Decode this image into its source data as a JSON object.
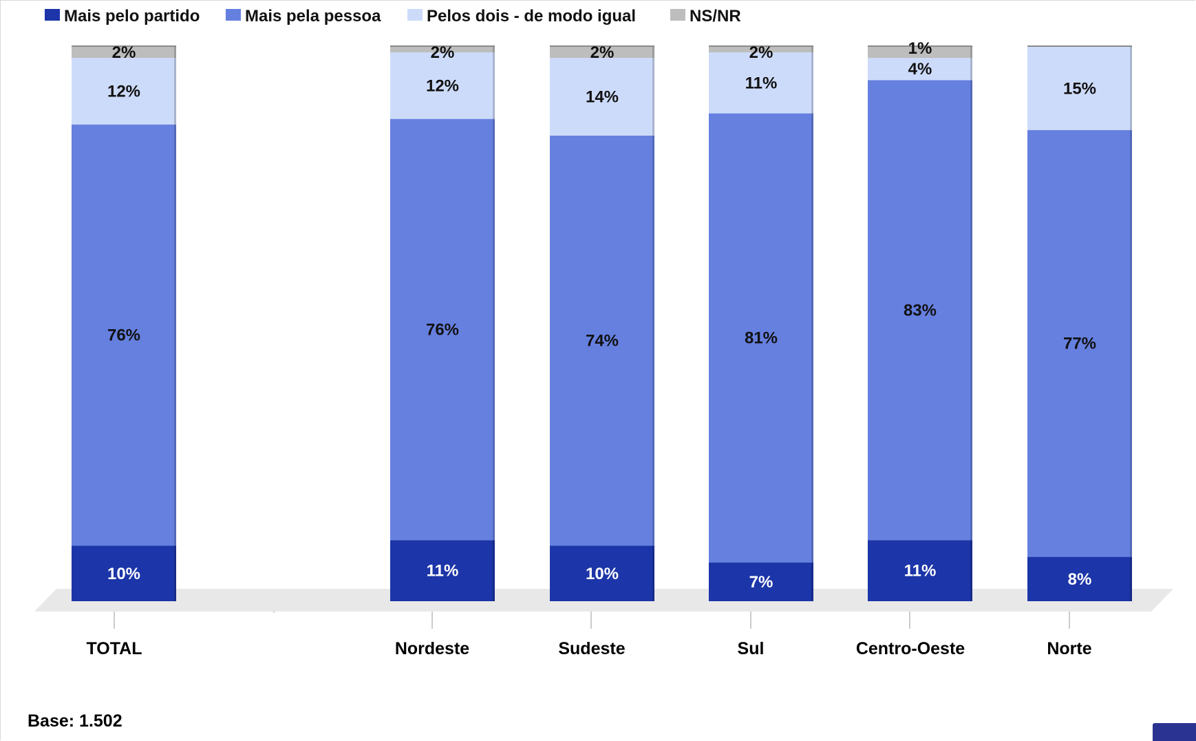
{
  "chart_data": {
    "type": "bar",
    "stacked": true,
    "categories": [
      "TOTAL",
      "Nordeste",
      "Sudeste",
      "Sul",
      "Centro-Oeste",
      "Norte"
    ],
    "series": [
      {
        "name": "Mais pelo partido",
        "color": "#1c35a8",
        "values": [
          10,
          11,
          10,
          7,
          11,
          8
        ],
        "labels": [
          "10%",
          "11%",
          "10%",
          "7%",
          "11%",
          "8%"
        ]
      },
      {
        "name": "Mais pela pessoa",
        "color": "#6680e0",
        "values": [
          76,
          76,
          74,
          81,
          83,
          77
        ],
        "labels": [
          "76%",
          "76%",
          "74%",
          "81%",
          "83%",
          "77%"
        ]
      },
      {
        "name": "Pelos dois - de modo igual",
        "color": "#cddbfb",
        "values": [
          12,
          12,
          14,
          11,
          4,
          15
        ],
        "labels": [
          "12%",
          "12%",
          "14%",
          "11%",
          "4%",
          "15%"
        ]
      },
      {
        "name": "NS/NR",
        "color": "#bdbdbd",
        "values": [
          2,
          2,
          2,
          2,
          1,
          null
        ],
        "labels": [
          "2%",
          "2%",
          "2%",
          "2%",
          "1%",
          ""
        ]
      }
    ],
    "ylim": [
      0,
      100
    ],
    "legend_position": "top-left",
    "grid": false,
    "title": "",
    "xlabel": "",
    "ylabel": ""
  },
  "footer": {
    "base_note": "Base: 1.502"
  }
}
